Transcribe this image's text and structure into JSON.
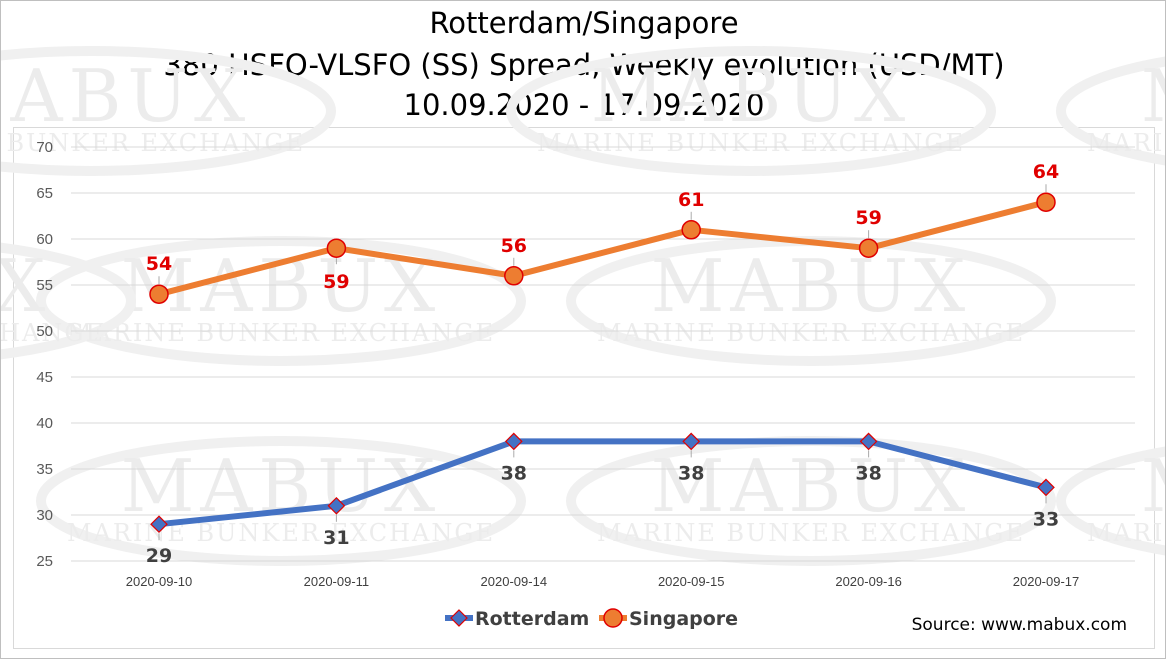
{
  "title_lines": [
    "Rotterdam/Singapore",
    "380 HSFO-VLSFO (SS) Spread, Weekly evolution (USD/MT)",
    "10.09.2020 - 17.09.2020"
  ],
  "source": "Source: www.mabux.com",
  "watermark": {
    "big": "MABUX",
    "small": "MARINE BUNKER EXCHANGE"
  },
  "colors": {
    "rotterdam": "#4472c4",
    "singapore": "#ed7d31",
    "marker_outline": "#e00000",
    "grid": "#d9d9d9",
    "singapore_label": "#e00000",
    "rotterdam_label": "#404040"
  },
  "chart_data": {
    "type": "line",
    "title": "Rotterdam/Singapore 380 HSFO-VLSFO (SS) Spread, Weekly evolution (USD/MT) 10.09.2020 - 17.09.2020",
    "categories": [
      "2020-09-10",
      "2020-09-11",
      "2020-09-14",
      "2020-09-15",
      "2020-09-16",
      "2020-09-17"
    ],
    "series": [
      {
        "name": "Rotterdam",
        "values": [
          29,
          31,
          38,
          38,
          38,
          33
        ],
        "marker": "diamond"
      },
      {
        "name": "Singapore",
        "values": [
          54,
          59,
          56,
          61,
          59,
          64
        ],
        "marker": "circle"
      }
    ],
    "ylim": [
      25,
      70
    ],
    "yticks": [
      25,
      30,
      35,
      40,
      45,
      50,
      55,
      60,
      65,
      70
    ],
    "xlabel": "",
    "ylabel": "",
    "grid": true,
    "legend": "bottom-center"
  }
}
